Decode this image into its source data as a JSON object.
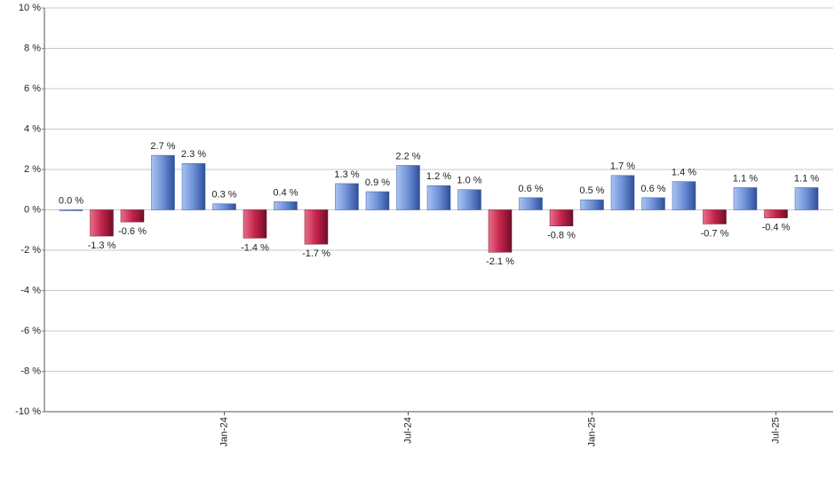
{
  "chart_data": {
    "type": "bar",
    "categories": [
      null,
      null,
      null,
      null,
      null,
      "Jan-24",
      null,
      null,
      null,
      null,
      null,
      "Jul-24",
      null,
      null,
      null,
      null,
      null,
      "Jan-25",
      null,
      null,
      null,
      null,
      null,
      "Jul-25",
      null
    ],
    "values": [
      0.0,
      -1.3,
      -0.6,
      2.7,
      2.3,
      0.3,
      -1.4,
      0.4,
      -1.7,
      1.3,
      0.9,
      2.2,
      1.2,
      1.0,
      -2.1,
      0.6,
      -0.8,
      0.5,
      1.7,
      0.6,
      1.4,
      -0.7,
      1.1,
      -0.4,
      1.1
    ],
    "value_labels": [
      "0.0 %",
      "-1.3 %",
      "-0.6 %",
      "2.7 %",
      "2.3 %",
      "0.3 %",
      "-1.4 %",
      "0.4 %",
      "-1.7 %",
      "1.3 %",
      "0.9 %",
      "2.2 %",
      "1.2 %",
      "1.0 %",
      "-2.1 %",
      "0.6 %",
      "-0.8 %",
      "0.5 %",
      "1.7 %",
      "0.6 %",
      "1.4 %",
      "-0.7 %",
      "1.1 %",
      "-0.4 %",
      "1.1 %"
    ],
    "positive_color": "#6d8fd6",
    "negative_color": "#c4234a",
    "ylim": [
      -10,
      10
    ],
    "yticks": [
      {
        "value": -10,
        "label": "-10 %"
      },
      {
        "value": -8,
        "label": "-8 %"
      },
      {
        "value": -6,
        "label": "-6 %"
      },
      {
        "value": -4,
        "label": "-4 %"
      },
      {
        "value": -2,
        "label": "-2 %"
      },
      {
        "value": 0,
        "label": "0 %"
      },
      {
        "value": 2,
        "label": "2 %"
      },
      {
        "value": 4,
        "label": "4 %"
      },
      {
        "value": 6,
        "label": "6 %"
      },
      {
        "value": 8,
        "label": "8 %"
      },
      {
        "value": 10,
        "label": "10 %"
      }
    ],
    "grid": true
  }
}
